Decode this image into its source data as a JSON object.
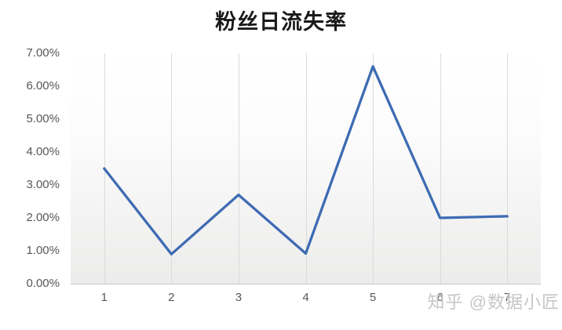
{
  "chart_data": {
    "type": "line",
    "title": "粉丝日流失率",
    "x": [
      1,
      2,
      3,
      4,
      5,
      6,
      7
    ],
    "x_tick_labels": [
      "1",
      "2",
      "3",
      "4",
      "5",
      "6",
      "7"
    ],
    "values": [
      3.5,
      0.9,
      2.7,
      0.92,
      6.6,
      2.0,
      2.05
    ],
    "y_tick_labels": [
      "7.00%",
      "6.00%",
      "5.00%",
      "4.00%",
      "3.00%",
      "2.00%",
      "1.00%",
      "0.00%"
    ],
    "ylim": [
      0,
      7
    ],
    "y_unit": "percent",
    "xlabel": "",
    "ylabel": "",
    "grid": "vertical-only",
    "legend_position": "none",
    "line_color": "#3E6BB3",
    "line_width": 3.3,
    "plot_bg_gradient_top": "#ffffff",
    "plot_bg_gradient_bottom": "#ececeb",
    "gridline_color": "#dbdbdb",
    "axis_line_color": "#cbcbcb",
    "tick_label_color": "#575757",
    "title_color": "#1a1a1a"
  },
  "watermark": {
    "text": "知乎 @数据小匠",
    "color": "#c6c6c6"
  }
}
